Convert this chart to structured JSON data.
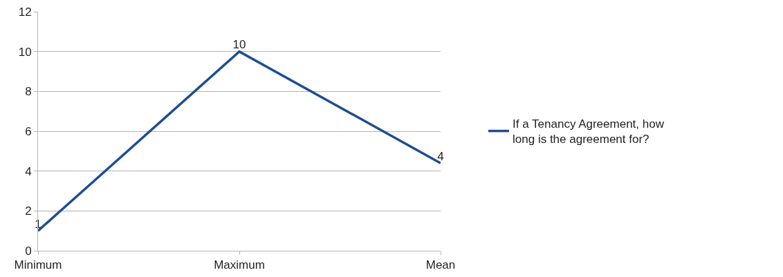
{
  "chart_data": {
    "type": "line",
    "categories": [
      "Minimum",
      "Maximum",
      "Mean"
    ],
    "series": [
      {
        "name": "If a Tenancy Agreement, how long is the agreement for?",
        "color": "#1f4e8f",
        "values": [
          1,
          10,
          4.4
        ],
        "value_labels": [
          "1",
          "10",
          "4"
        ]
      }
    ],
    "ylim": [
      0,
      12
    ],
    "yticks": [
      0,
      2,
      4,
      6,
      8,
      10,
      12
    ],
    "grid": "y",
    "legend": "right",
    "marker": "none",
    "line_style": "solid"
  }
}
